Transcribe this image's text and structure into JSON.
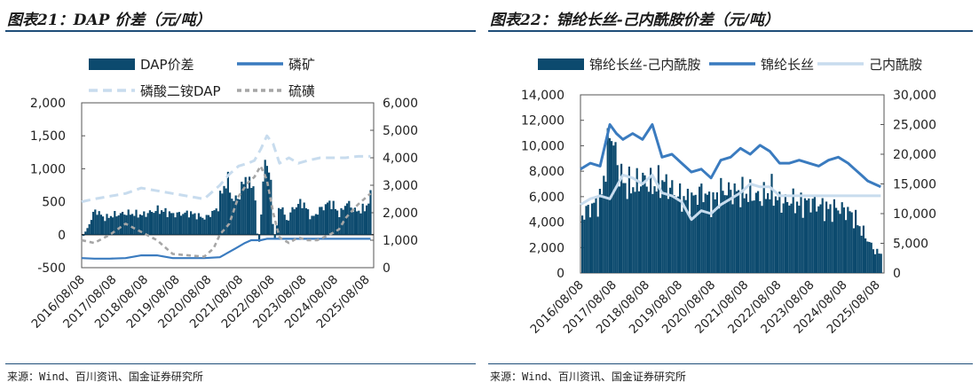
{
  "left": {
    "title": "图表21：DAP 价差（元/吨）",
    "source": "来源：Wind、百川资讯、国金证券研究所"
  },
  "right": {
    "title": "图表22：锦纶长丝-己内酰胺价差（元/吨）",
    "source": "来源：Wind、百川资讯、国金证券研究所"
  },
  "colors": {
    "navy": "#0c4a6e",
    "blue": "#3a7bbf",
    "light": "#c8dcee",
    "gray": "#a6a6a6"
  },
  "chart_data": [
    {
      "type": "bar+line",
      "title": "DAP 价差（元/吨）",
      "categories": [
        "2016/08/08",
        "2017/08/08",
        "2018/08/08",
        "2019/08/08",
        "2020/08/08",
        "2021/08/08",
        "2022/08/08",
        "2023/08/08",
        "2024/08/08",
        "2025/08/08"
      ],
      "y_left": {
        "ticks": [
          "2,000",
          "1,500",
          "1,000",
          "500",
          "0",
          "-500"
        ],
        "lim": [
          -500,
          2000
        ]
      },
      "y_right": {
        "ticks": [
          "6,000",
          "5,000",
          "4,000",
          "3,000",
          "2,000",
          "1,000",
          "0"
        ],
        "lim": [
          0,
          6000
        ]
      },
      "legend": [
        "DAP价差",
        "磷矿",
        "磷酸二铵DAP",
        "硫磺"
      ],
      "series": [
        {
          "name": "DAP价差",
          "axis": "left",
          "kind": "area",
          "x": [
            2016.6,
            2016.8,
            2017.0,
            2017.3,
            2017.6,
            2018.0,
            2018.5,
            2019.0,
            2019.5,
            2020.0,
            2020.5,
            2020.9,
            2021.0,
            2021.2,
            2021.4,
            2021.6,
            2021.8,
            2021.9,
            2022.0,
            2022.1,
            2022.2,
            2022.3,
            2022.4,
            2022.5,
            2022.6,
            2022.7,
            2022.8,
            2022.9,
            2023.0,
            2023.1,
            2023.3,
            2023.6,
            2023.9,
            2024.2,
            2024.5,
            2024.8,
            2025.0,
            2025.3,
            2025.6,
            2025.8
          ],
          "values": [
            -50,
            150,
            380,
            250,
            300,
            330,
            300,
            380,
            310,
            330,
            250,
            400,
            600,
            850,
            500,
            600,
            900,
            700,
            850,
            550,
            -300,
            400,
            1100,
            1150,
            700,
            -150,
            200,
            500,
            350,
            200,
            400,
            500,
            250,
            400,
            500,
            300,
            500,
            350,
            400,
            600
          ]
        },
        {
          "name": "磷矿",
          "axis": "right",
          "kind": "line",
          "x": [
            2016.6,
            2017.0,
            2017.5,
            2018.0,
            2018.5,
            2019.0,
            2019.5,
            2020.0,
            2020.5,
            2021.0,
            2021.5,
            2021.8,
            2022.0,
            2022.3,
            2022.5,
            2023.0,
            2023.5,
            2024.0,
            2024.5,
            2025.0,
            2025.5,
            2025.8
          ],
          "values": [
            350,
            330,
            330,
            350,
            450,
            450,
            350,
            350,
            350,
            380,
            700,
            900,
            1000,
            1000,
            1050,
            1050,
            1050,
            1050,
            1050,
            1050,
            1050,
            1050
          ]
        },
        {
          "name": "磷酸二铵DAP",
          "axis": "right",
          "kind": "line",
          "x": [
            2016.6,
            2017.0,
            2017.5,
            2018.0,
            2018.5,
            2019.0,
            2019.5,
            2020.0,
            2020.5,
            2021.0,
            2021.3,
            2021.6,
            2021.9,
            2022.1,
            2022.3,
            2022.5,
            2022.7,
            2022.9,
            2023.2,
            2023.5,
            2023.8,
            2024.2,
            2024.6,
            2025.0,
            2025.4,
            2025.8
          ],
          "values": [
            2400,
            2500,
            2600,
            2700,
            2900,
            2800,
            2700,
            2600,
            2500,
            3000,
            3400,
            3700,
            3800,
            3900,
            4300,
            4800,
            4500,
            3800,
            4000,
            3800,
            3900,
            4000,
            4000,
            4000,
            4050,
            4050
          ]
        },
        {
          "name": "硫磺",
          "axis": "right",
          "kind": "dashed",
          "x": [
            2016.6,
            2017.0,
            2017.5,
            2018.0,
            2018.5,
            2019.0,
            2019.5,
            2020.0,
            2020.5,
            2020.8,
            2021.0,
            2021.3,
            2021.6,
            2021.9,
            2022.1,
            2022.3,
            2022.5,
            2022.7,
            2022.9,
            2023.2,
            2023.5,
            2023.8,
            2024.1,
            2024.5,
            2024.8,
            2025.0,
            2025.4,
            2025.8
          ],
          "values": [
            1000,
            900,
            1200,
            1600,
            1300,
            1000,
            500,
            450,
            400,
            700,
            1200,
            1600,
            2600,
            3100,
            3300,
            3700,
            3200,
            2000,
            1100,
            900,
            1100,
            1000,
            1000,
            1200,
            1400,
            1800,
            2300,
            2700
          ]
        }
      ]
    },
    {
      "type": "bar+line",
      "title": "锦纶长丝-己内酰胺价差（元/吨）",
      "categories": [
        "2016/08/08",
        "2017/08/08",
        "2018/08/08",
        "2019/08/08",
        "2020/08/08",
        "2021/08/08",
        "2022/08/08",
        "2023/08/08",
        "2024/08/08",
        "2025/08/08"
      ],
      "y_left": {
        "ticks": [
          "14,000",
          "12,000",
          "10,000",
          "8,000",
          "6,000",
          "4,000",
          "2,000",
          "0"
        ],
        "lim": [
          0,
          14000
        ]
      },
      "y_right": {
        "ticks": [
          "30,000",
          "25,000",
          "20,000",
          "15,000",
          "10,000",
          "5,000",
          "0"
        ],
        "lim": [
          0,
          30000
        ]
      },
      "legend": [
        "锦纶长丝-己内酰胺",
        "锦纶长丝",
        "己内酰胺"
      ],
      "series": [
        {
          "name": "锦纶长丝-己内酰胺",
          "axis": "left",
          "kind": "area",
          "x": [
            2016.6,
            2016.9,
            2017.2,
            2017.5,
            2017.7,
            2017.9,
            2018.2,
            2018.5,
            2018.8,
            2019.1,
            2019.4,
            2019.7,
            2020.0,
            2020.3,
            2020.6,
            2020.9,
            2021.2,
            2021.5,
            2021.8,
            2022.1,
            2022.4,
            2022.7,
            2023.0,
            2023.3,
            2023.6,
            2023.9,
            2024.2,
            2024.5,
            2024.8,
            2025.0,
            2025.2,
            2025.4,
            2025.6,
            2025.8
          ],
          "values": [
            4500,
            5200,
            5800,
            11500,
            8500,
            7000,
            6800,
            7400,
            6800,
            7200,
            6500,
            5800,
            5800,
            6500,
            5500,
            6500,
            6400,
            6300,
            6200,
            5900,
            6500,
            5500,
            5700,
            5400,
            5600,
            5300,
            5000,
            5100,
            4800,
            4200,
            3300,
            2500,
            1700,
            1500
          ]
        },
        {
          "name": "锦纶长丝",
          "axis": "right",
          "kind": "line",
          "x": [
            2016.6,
            2016.9,
            2017.2,
            2017.5,
            2017.7,
            2017.9,
            2018.2,
            2018.5,
            2018.8,
            2019.1,
            2019.4,
            2019.7,
            2020.0,
            2020.3,
            2020.6,
            2020.9,
            2021.2,
            2021.5,
            2021.8,
            2022.1,
            2022.4,
            2022.7,
            2023.0,
            2023.3,
            2023.6,
            2023.9,
            2024.2,
            2024.5,
            2024.8,
            2025.0,
            2025.2,
            2025.4,
            2025.6,
            2025.8
          ],
          "values": [
            17500,
            18500,
            18000,
            25000,
            23500,
            22500,
            23500,
            22500,
            25000,
            19500,
            20000,
            18500,
            17000,
            17500,
            16000,
            19000,
            19500,
            21000,
            20000,
            21500,
            20500,
            18500,
            18500,
            19000,
            18500,
            18000,
            19000,
            19500,
            18500,
            17500,
            16500,
            15500,
            15000,
            14500
          ]
        },
        {
          "name": "己内酰胺",
          "axis": "right",
          "kind": "line",
          "x": [
            2016.6,
            2016.9,
            2017.2,
            2017.5,
            2017.7,
            2017.9,
            2018.2,
            2018.5,
            2018.8,
            2019.1,
            2019.4,
            2019.7,
            2020.0,
            2020.3,
            2020.6,
            2020.9,
            2021.2,
            2021.5,
            2021.8,
            2022.1,
            2022.4,
            2022.7,
            2023.0,
            2023.3,
            2023.6,
            2023.9,
            2024.2,
            2024.5,
            2024.8,
            2025.0,
            2025.2,
            2025.4,
            2025.6,
            2025.8
          ],
          "values": [
            11500,
            12500,
            13000,
            12500,
            14500,
            16500,
            16000,
            15000,
            16500,
            13500,
            13000,
            12000,
            9000,
            10500,
            10000,
            11500,
            12500,
            13500,
            15000,
            14500,
            14500,
            13000,
            13000,
            13000,
            13000,
            13000,
            13000,
            13000,
            13000,
            13000,
            13000,
            13000,
            13000,
            13000
          ]
        }
      ]
    }
  ]
}
